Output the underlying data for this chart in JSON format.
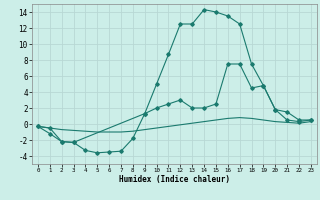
{
  "background_color": "#cceee8",
  "grid_color": "#b8d8d4",
  "line_color": "#1a7a6e",
  "xlabel": "Humidex (Indice chaleur)",
  "ylim": [
    -5,
    15
  ],
  "xlim": [
    -0.5,
    23.5
  ],
  "yticks": [
    -4,
    -2,
    0,
    2,
    4,
    6,
    8,
    10,
    12,
    14
  ],
  "xticks": [
    0,
    1,
    2,
    3,
    4,
    5,
    6,
    7,
    8,
    9,
    10,
    11,
    12,
    13,
    14,
    15,
    16,
    17,
    18,
    19,
    20,
    21,
    22,
    23
  ],
  "line1_x": [
    0,
    1,
    2,
    3,
    4,
    5,
    6,
    7,
    8,
    9,
    10,
    11,
    12,
    13,
    14,
    15,
    16,
    17,
    18,
    19,
    20,
    21,
    22,
    23
  ],
  "line1_y": [
    -0.3,
    -1.2,
    -2.2,
    -2.3,
    -3.3,
    -3.6,
    -3.5,
    -3.4,
    -1.8,
    1.3,
    5.0,
    8.7,
    12.5,
    12.5,
    14.3,
    14.0,
    13.5,
    12.5,
    7.5,
    4.8,
    1.8,
    0.5,
    0.3,
    0.5
  ],
  "line2_x": [
    0,
    1,
    2,
    3,
    4,
    5,
    6,
    7,
    8,
    9,
    10,
    11,
    12,
    13,
    14,
    15,
    16,
    17,
    18,
    19,
    20,
    21,
    22,
    23
  ],
  "line2_y": [
    -0.3,
    -0.5,
    -0.7,
    -0.8,
    -0.9,
    -1.0,
    -1.0,
    -1.0,
    -0.9,
    -0.7,
    -0.5,
    -0.3,
    -0.1,
    0.1,
    0.3,
    0.5,
    0.7,
    0.8,
    0.7,
    0.5,
    0.3,
    0.2,
    0.1,
    0.3
  ],
  "line3_x": [
    0,
    1,
    2,
    3,
    9,
    10,
    11,
    12,
    13,
    14,
    15,
    16,
    17,
    18,
    19,
    20,
    21,
    22,
    23
  ],
  "line3_y": [
    -0.3,
    -0.5,
    -2.2,
    -2.3,
    1.3,
    2.0,
    2.5,
    3.0,
    2.0,
    2.0,
    2.5,
    7.5,
    7.5,
    4.5,
    4.8,
    1.8,
    1.5,
    0.5,
    0.5
  ]
}
